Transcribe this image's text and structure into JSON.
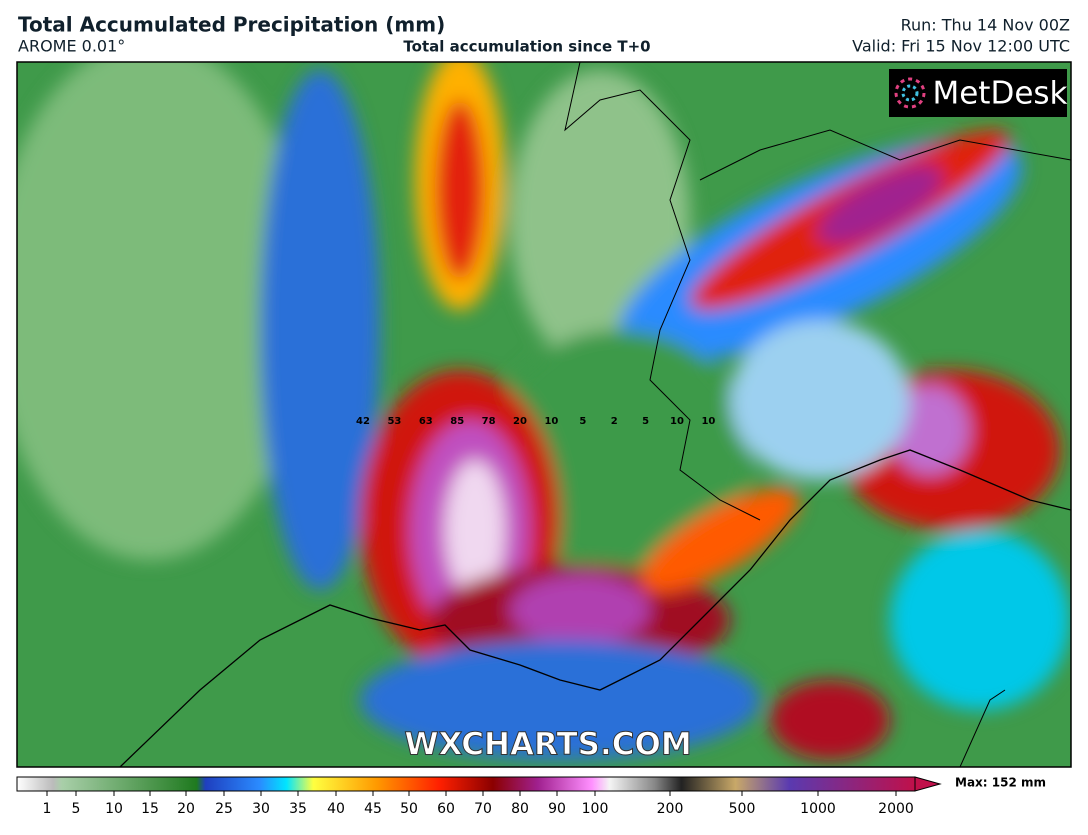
{
  "header": {
    "title": "Total Accumulated Precipitation (mm)",
    "model": "AROME 0.01°",
    "subtitle": "Total accumulation since T+0",
    "run": "Run: Thu 14 Nov 00Z",
    "valid": "Valid: Fri 15 Nov 12:00 UTC"
  },
  "map": {
    "logo": "MetDesk",
    "watermark": "WXCHARTS.COM",
    "point_labels": [
      42,
      53,
      63,
      85,
      78,
      20,
      10,
      5,
      2,
      5,
      10,
      10
    ]
  },
  "colorbar": {
    "labels": [
      1,
      5,
      10,
      15,
      20,
      25,
      30,
      35,
      40,
      45,
      50,
      60,
      70,
      80,
      90,
      100,
      200,
      500,
      1000,
      2000
    ],
    "max": "Max: 152 mm"
  }
}
